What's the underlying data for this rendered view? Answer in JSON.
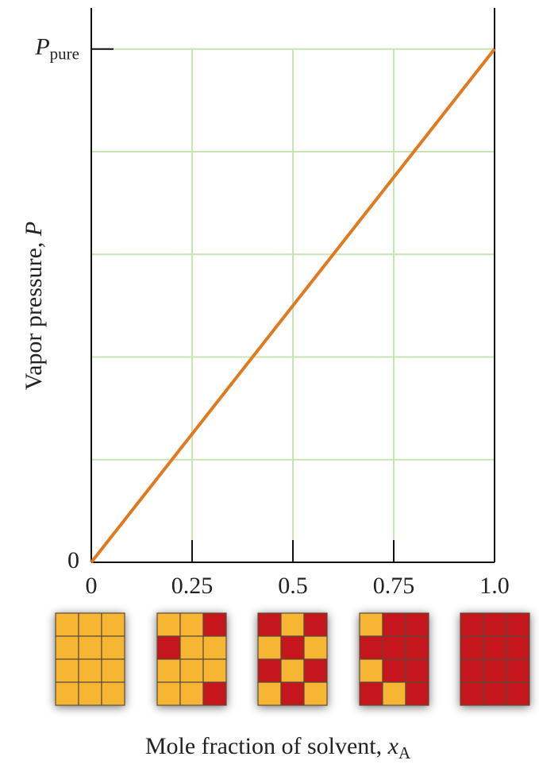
{
  "chart_data": {
    "type": "line",
    "xlabel": "Mole fraction of solvent, ",
    "xlabel_var": "x",
    "xlabel_sub": "A",
    "ylabel": "Vapor pressure, ",
    "ylabel_var": "P",
    "x": [
      0,
      1
    ],
    "series": [
      {
        "color": "#e07a1f",
        "values": [
          0,
          1
        ]
      }
    ],
    "xlim": [
      0,
      1
    ],
    "ylim": [
      0,
      1.08
    ],
    "xticks": [
      0,
      0.25,
      0.5,
      0.75,
      {
        "value": 1,
        "label": "1.0"
      }
    ],
    "yticks": [
      0,
      {
        "value": 1,
        "label": "P",
        "subscript": "pure"
      }
    ],
    "ygrid": [
      0.2,
      0.4,
      0.6,
      0.8
    ],
    "grid": true
  }
}
